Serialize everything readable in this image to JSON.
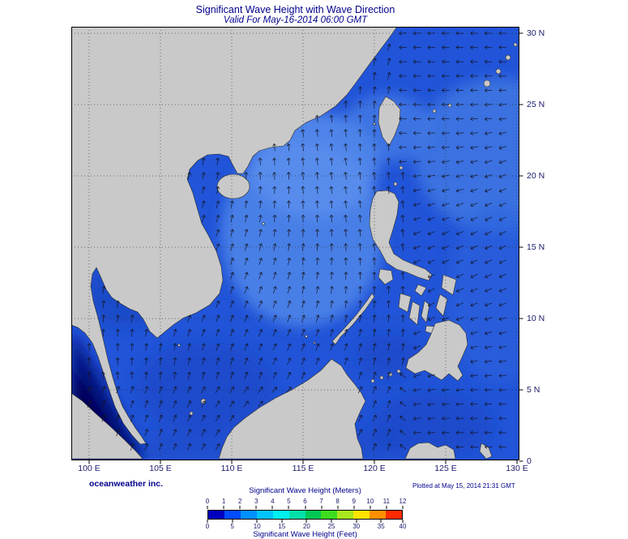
{
  "header": {
    "title": "Significant Wave Height with Wave Direction",
    "subtitle": "Valid For May-16-2014 06:00 GMT"
  },
  "axes": {
    "x_labels": [
      "100 E",
      "105 E",
      "110 E",
      "115 E",
      "120 E",
      "125 E",
      "130 E"
    ],
    "y_labels": [
      "30 N",
      "25 N",
      "20 N",
      "15 N",
      "10 N",
      "5 N",
      "0"
    ]
  },
  "footer": {
    "credit": "oceanweather inc.",
    "plotted": "Plotted at May 15, 2014 21:31 GMT"
  },
  "colorbar": {
    "meters_title": "Significant Wave Height (Meters)",
    "feet_title": "Significant Wave Height (Feet)",
    "meters_ticks": [
      "0",
      "1",
      "2",
      "3",
      "4",
      "5",
      "6",
      "7",
      "8",
      "9",
      "10",
      "11",
      "12"
    ],
    "feet_ticks": [
      "0",
      "5",
      "10",
      "15",
      "20",
      "25",
      "30",
      "35",
      "40"
    ],
    "colors": [
      "#0000c0",
      "#004cff",
      "#0090ff",
      "#00c4ff",
      "#00f0f0",
      "#00e0a8",
      "#00c853",
      "#3ddc1e",
      "#a8e61e",
      "#ffe400",
      "#ff9000",
      "#ff2a00"
    ]
  },
  "colors": {
    "title_text": "#00008b",
    "axis_text": "#18186a",
    "footer_text": "#00008b",
    "land": "#c9c9c9",
    "coastline": "#2b2b2b",
    "ocean_base": "#2154d8",
    "scs_light": "#4d84e8",
    "scs_lighter": "#5b90ee",
    "pacific_light": "#4077e2",
    "pacific_mid": "#2f64de",
    "regional_dark": "#1641bc",
    "malacca_dark": "#000e7c",
    "malacca_deep": "#000650",
    "arrow": "#14141e",
    "grid": "#30303a",
    "frame": "#000000"
  },
  "chart_data": {
    "type": "heatmap",
    "variable": "Significant Wave Height",
    "units": [
      "Meters",
      "Feet"
    ],
    "scale_meters": [
      0,
      1,
      2,
      3,
      4,
      5,
      6,
      7,
      8,
      9,
      10,
      11,
      12
    ],
    "scale_feet": [
      0,
      5,
      10,
      15,
      20,
      25,
      30,
      35,
      40
    ],
    "region": {
      "lon_range": [
        "100 E",
        "130 E"
      ],
      "lat_range": [
        "0",
        "30 N"
      ]
    },
    "valid_time": "May-16-2014 06:00 GMT",
    "plotted_time": "May 15, 2014 21:31 GMT",
    "overlay": "wave direction arrows"
  }
}
